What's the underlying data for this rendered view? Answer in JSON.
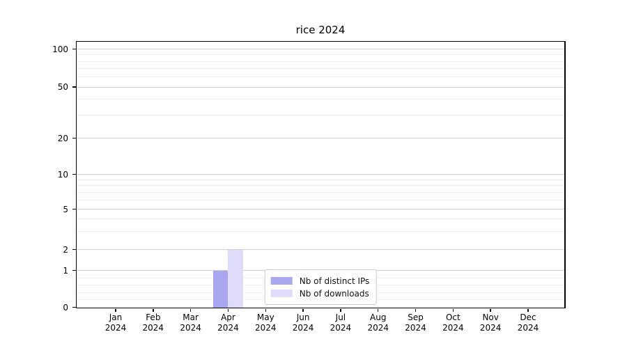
{
  "chart_data": {
    "type": "bar",
    "title": "rice 2024",
    "categories": [
      {
        "label": "Jan",
        "sublabel": "2024"
      },
      {
        "label": "Feb",
        "sublabel": "2024"
      },
      {
        "label": "Mar",
        "sublabel": "2024"
      },
      {
        "label": "Apr",
        "sublabel": "2024"
      },
      {
        "label": "May",
        "sublabel": "2024"
      },
      {
        "label": "Jun",
        "sublabel": "2024"
      },
      {
        "label": "Jul",
        "sublabel": "2024"
      },
      {
        "label": "Aug",
        "sublabel": "2024"
      },
      {
        "label": "Sep",
        "sublabel": "2024"
      },
      {
        "label": "Oct",
        "sublabel": "2024"
      },
      {
        "label": "Nov",
        "sublabel": "2024"
      },
      {
        "label": "Dec",
        "sublabel": "2024"
      }
    ],
    "series": [
      {
        "name": "Nb of distinct IPs",
        "color": "#a9a7f0",
        "values": [
          0,
          0,
          0,
          1,
          0,
          0,
          0,
          0,
          0,
          0,
          0,
          0
        ]
      },
      {
        "name": "Nb of downloads",
        "color": "#dedcf9",
        "values": [
          0,
          0,
          0,
          2,
          0,
          0,
          0,
          0,
          0,
          0,
          0,
          0
        ]
      }
    ],
    "y_axis": {
      "scale": "symlog",
      "major_ticks": [
        0,
        1,
        2,
        5,
        10,
        20,
        50,
        100
      ],
      "minor_ticks": [
        0.2,
        0.4,
        0.6,
        0.8,
        3,
        4,
        6,
        7,
        8,
        9,
        30,
        40,
        60,
        70,
        80,
        90
      ],
      "ylim": [
        0,
        115
      ]
    },
    "xlabel": "",
    "ylabel": "",
    "grid": {
      "major": true,
      "minor": true
    },
    "legend": {
      "position": "lower center"
    }
  }
}
